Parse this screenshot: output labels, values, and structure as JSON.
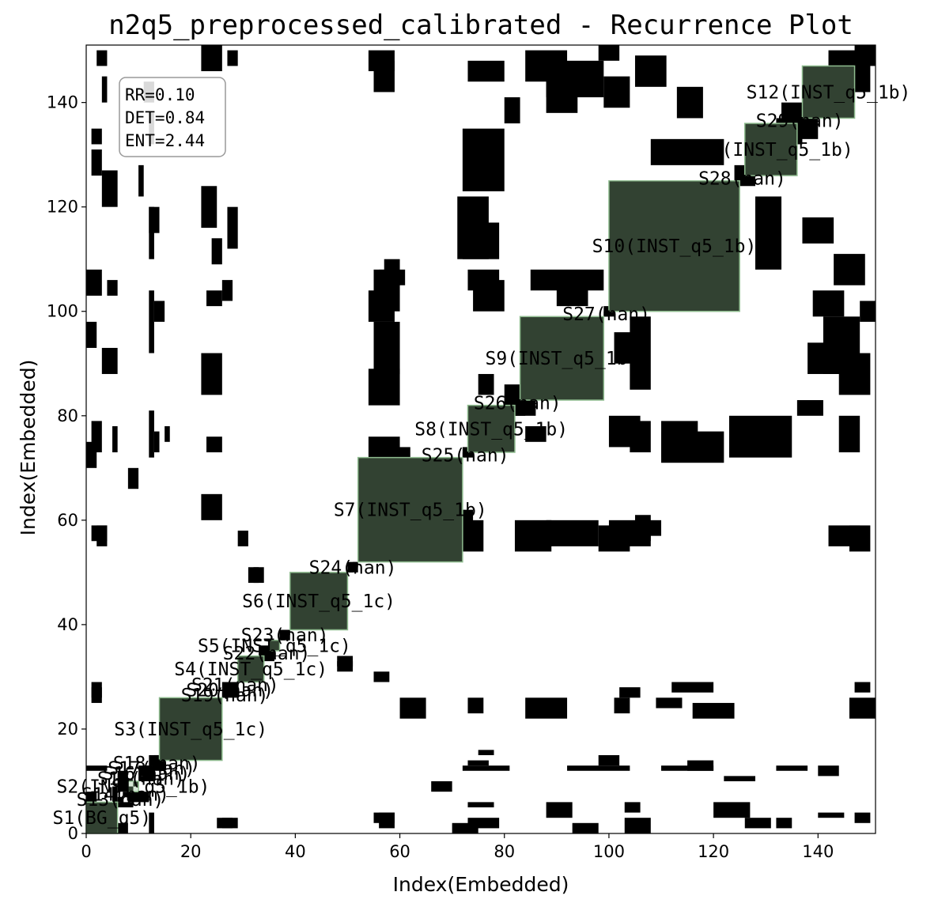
{
  "chart_data": {
    "type": "heatmap",
    "title": "n2q5_preprocessed_calibrated - Recurrence Plot",
    "xlabel": "Index(Embedded)",
    "ylabel": "Index(Embedded)",
    "xlim": [
      0,
      151
    ],
    "ylim": [
      0,
      151
    ],
    "xticks": [
      0,
      20,
      40,
      60,
      80,
      100,
      120,
      140
    ],
    "yticks": [
      0,
      20,
      40,
      60,
      80,
      100,
      120,
      140
    ],
    "grid": false,
    "colors": {
      "recurrence": "#000000",
      "segment_fill": "#8fbc8f",
      "background": "#ffffff"
    },
    "stats": {
      "rr": "RR=0.10",
      "det": "DET=0.84",
      "ent": "ENT=2.44"
    },
    "segments": [
      {
        "label": "S1(BG_q5)",
        "start": 0,
        "end": 6,
        "highlighted": true
      },
      {
        "label": "S13(nan)",
        "start": 6,
        "end": 7,
        "highlighted": false
      },
      {
        "label": "S14(nan)",
        "start": 7,
        "end": 8,
        "highlighted": false
      },
      {
        "label": "S2(INST_q5_1b)",
        "start": 8,
        "end": 10,
        "highlighted": true
      },
      {
        "label": "S15(nan)",
        "start": 10,
        "end": 11,
        "highlighted": false
      },
      {
        "label": "S16(nan)",
        "start": 11,
        "end": 12,
        "highlighted": false
      },
      {
        "label": "S17(nan)",
        "start": 12,
        "end": 13,
        "highlighted": false
      },
      {
        "label": "S18(nan)",
        "start": 13,
        "end": 14,
        "highlighted": false
      },
      {
        "label": "S3(INST_q5_1c)",
        "start": 14,
        "end": 26,
        "highlighted": true
      },
      {
        "label": "S19(nan)",
        "start": 26,
        "end": 27,
        "highlighted": false
      },
      {
        "label": "S20(nan)",
        "start": 27,
        "end": 28,
        "highlighted": false
      },
      {
        "label": "S21(nan)",
        "start": 28,
        "end": 29,
        "highlighted": false
      },
      {
        "label": "S4(INST_q5_1c)",
        "start": 29,
        "end": 34,
        "highlighted": true
      },
      {
        "label": "S22(nan)",
        "start": 34,
        "end": 35,
        "highlighted": false
      },
      {
        "label": "S5(INST_q5_1c)",
        "start": 35,
        "end": 37,
        "highlighted": true
      },
      {
        "label": "S23(nan)",
        "start": 37,
        "end": 39,
        "highlighted": false
      },
      {
        "label": "S6(INST_q5_1c)",
        "start": 39,
        "end": 50,
        "highlighted": true
      },
      {
        "label": "S24(nan)",
        "start": 50,
        "end": 52,
        "highlighted": false
      },
      {
        "label": "S7(INST_q5_1b)",
        "start": 52,
        "end": 72,
        "highlighted": true
      },
      {
        "label": "S25(nan)",
        "start": 72,
        "end": 73,
        "highlighted": false
      },
      {
        "label": "S8(INST_q5_1b)",
        "start": 73,
        "end": 82,
        "highlighted": true
      },
      {
        "label": "S26(nan)",
        "start": 82,
        "end": 83,
        "highlighted": false
      },
      {
        "label": "S9(INST_q5_1b)",
        "start": 83,
        "end": 99,
        "highlighted": true
      },
      {
        "label": "S27(nan)",
        "start": 99,
        "end": 100,
        "highlighted": false
      },
      {
        "label": "S10(INST_q5_1b)",
        "start": 100,
        "end": 125,
        "highlighted": true
      },
      {
        "label": "S28(nan)",
        "start": 125,
        "end": 126,
        "highlighted": false
      },
      {
        "label": "S11(INST_q5_1b)",
        "start": 126,
        "end": 136,
        "highlighted": true
      },
      {
        "label": "S29(nan)",
        "start": 136,
        "end": 137,
        "highlighted": false
      },
      {
        "label": "S12(INST_q5_1b)",
        "start": 137,
        "end": 147,
        "highlighted": true
      }
    ],
    "recurrence_blocks": [
      {
        "x": [
          0,
          6
        ],
        "y": [
          0,
          6
        ]
      },
      {
        "x": [
          1,
          3
        ],
        "y": [
          26,
          28
        ]
      },
      {
        "x": [
          1,
          3
        ],
        "y": [
          73,
          79
        ]
      },
      {
        "x": [
          1,
          3
        ],
        "y": [
          132,
          135
        ]
      },
      {
        "x": [
          2,
          4
        ],
        "y": [
          55,
          59
        ]
      },
      {
        "x": [
          2,
          4
        ],
        "y": [
          147,
          150
        ]
      },
      {
        "x": [
          5,
          6
        ],
        "y": [
          6,
          9
        ]
      },
      {
        "x": [
          6,
          8
        ],
        "y": [
          8,
          12
        ]
      },
      {
        "x": [
          5,
          6
        ],
        "y": [
          73,
          78
        ]
      },
      {
        "x": [
          10,
          11
        ],
        "y": [
          122,
          128
        ]
      },
      {
        "x": [
          11,
          13
        ],
        "y": [
          10,
          13
        ]
      },
      {
        "x": [
          13,
          15
        ],
        "y": [
          12,
          15
        ]
      },
      {
        "x": [
          14,
          26
        ],
        "y": [
          14,
          26
        ]
      },
      {
        "x": [
          13,
          14
        ],
        "y": [
          73,
          77
        ]
      },
      {
        "x": [
          15,
          16
        ],
        "y": [
          75,
          78
        ]
      },
      {
        "x": [
          5,
          8
        ],
        "y": [
          0,
          2
        ]
      },
      {
        "x": [
          4,
          6
        ],
        "y": [
          103,
          106
        ]
      },
      {
        "x": [
          8,
          10
        ],
        "y": [
          66,
          70
        ]
      },
      {
        "x": [
          11,
          13
        ],
        "y": [
          140,
          144
        ]
      },
      {
        "x": [
          12,
          14
        ],
        "y": [
          115,
          120
        ]
      },
      {
        "x": [
          13,
          15
        ],
        "y": [
          98,
          102
        ]
      },
      {
        "x": [
          26,
          29
        ],
        "y": [
          26,
          29
        ]
      },
      {
        "x": [
          25,
          29
        ],
        "y": [
          1,
          3
        ]
      },
      {
        "x": [
          26,
          28
        ],
        "y": [
          102,
          106
        ]
      },
      {
        "x": [
          27,
          29
        ],
        "y": [
          112,
          120
        ]
      },
      {
        "x": [
          27,
          29
        ],
        "y": [
          147,
          150
        ]
      },
      {
        "x": [
          29,
          31
        ],
        "y": [
          55,
          58
        ]
      },
      {
        "x": [
          29,
          34
        ],
        "y": [
          29,
          34
        ]
      },
      {
        "x": [
          33,
          35
        ],
        "y": [
          34,
          36
        ]
      },
      {
        "x": [
          31,
          33
        ],
        "y": [
          48,
          51
        ]
      },
      {
        "x": [
          35,
          37
        ],
        "y": [
          35,
          37
        ]
      },
      {
        "x": [
          37,
          39
        ],
        "y": [
          37,
          39
        ]
      },
      {
        "x": [
          39,
          50
        ],
        "y": [
          39,
          50
        ]
      },
      {
        "x": [
          39,
          41
        ],
        "y": [
          41,
          46
        ]
      },
      {
        "x": [
          48,
          51
        ],
        "y": [
          32,
          34
        ]
      },
      {
        "x": [
          50,
          52
        ],
        "y": [
          50,
          52
        ]
      },
      {
        "x": [
          52,
          72
        ],
        "y": [
          52,
          72
        ]
      },
      {
        "x": [
          54,
          60
        ],
        "y": [
          70,
          76
        ]
      },
      {
        "x": [
          54,
          59
        ],
        "y": [
          146,
          150
        ]
      },
      {
        "x": [
          55,
          60
        ],
        "y": [
          88,
          98
        ]
      },
      {
        "x": [
          55,
          60
        ],
        "y": [
          100,
          108
        ]
      },
      {
        "x": [
          58,
          61
        ],
        "y": [
          105,
          108
        ]
      },
      {
        "x": [
          60,
          65
        ],
        "y": [
          22,
          26
        ]
      },
      {
        "x": [
          56,
          59
        ],
        "y": [
          1,
          4
        ]
      },
      {
        "x": [
          57,
          60
        ],
        "y": [
          107,
          110
        ]
      },
      {
        "x": [
          72,
          74
        ],
        "y": [
          72,
          74
        ]
      },
      {
        "x": [
          73,
          82
        ],
        "y": [
          73,
          82
        ]
      },
      {
        "x": [
          72,
          80
        ],
        "y": [
          123,
          135
        ]
      },
      {
        "x": [
          71,
          77
        ],
        "y": [
          110,
          122
        ]
      },
      {
        "x": [
          74,
          80
        ],
        "y": [
          100,
          106
        ]
      },
      {
        "x": [
          70,
          75
        ],
        "y": [
          0,
          2
        ]
      },
      {
        "x": [
          69,
          74
        ],
        "y": [
          56,
          62
        ]
      },
      {
        "x": [
          73,
          76
        ],
        "y": [
          23,
          26
        ]
      },
      {
        "x": [
          80,
          84
        ],
        "y": [
          80,
          86
        ]
      },
      {
        "x": [
          82,
          83
        ],
        "y": [
          82,
          83
        ]
      },
      {
        "x": [
          83,
          99
        ],
        "y": [
          83,
          99
        ]
      },
      {
        "x": [
          84,
          92
        ],
        "y": [
          144,
          150
        ]
      },
      {
        "x": [
          88,
          94
        ],
        "y": [
          138,
          145
        ]
      },
      {
        "x": [
          85,
          99
        ],
        "y": [
          104,
          108
        ]
      },
      {
        "x": [
          82,
          89
        ],
        "y": [
          54,
          60
        ]
      },
      {
        "x": [
          84,
          88
        ],
        "y": [
          75,
          78
        ]
      },
      {
        "x": [
          84,
          92
        ],
        "y": [
          22,
          26
        ]
      },
      {
        "x": [
          88,
          93
        ],
        "y": [
          3,
          6
        ]
      },
      {
        "x": [
          93,
          98
        ],
        "y": [
          0,
          2
        ]
      },
      {
        "x": [
          99,
          101
        ],
        "y": [
          99,
          101
        ]
      },
      {
        "x": [
          100,
          125
        ],
        "y": [
          100,
          125
        ]
      },
      {
        "x": [
          99,
          104
        ],
        "y": [
          139,
          145
        ]
      },
      {
        "x": [
          101,
          106
        ],
        "y": [
          90,
          96
        ]
      },
      {
        "x": [
          101,
          104
        ],
        "y": [
          23,
          26
        ]
      },
      {
        "x": [
          98,
          104
        ],
        "y": [
          54,
          59
        ]
      },
      {
        "x": [
          103,
          108
        ],
        "y": [
          0,
          3
        ]
      },
      {
        "x": [
          104,
          108
        ],
        "y": [
          73,
          79
        ]
      },
      {
        "x": [
          105,
          108
        ],
        "y": [
          56,
          60
        ]
      },
      {
        "x": [
          109,
          114
        ],
        "y": [
          24,
          26
        ]
      },
      {
        "x": [
          113,
          118
        ],
        "y": [
          137,
          143
        ]
      },
      {
        "x": [
          110,
          117
        ],
        "y": [
          72,
          79
        ]
      },
      {
        "x": [
          116,
          124
        ],
        "y": [
          22,
          25
        ]
      },
      {
        "x": [
          120,
          127
        ],
        "y": [
          3,
          6
        ]
      },
      {
        "x": [
          125,
          126
        ],
        "y": [
          125,
          126
        ]
      },
      {
        "x": [
          126,
          136
        ],
        "y": [
          126,
          136
        ]
      },
      {
        "x": [
          124,
          128
        ],
        "y": [
          124,
          128
        ]
      },
      {
        "x": [
          128,
          133
        ],
        "y": [
          108,
          122
        ]
      },
      {
        "x": [
          133,
          137
        ],
        "y": [
          132,
          140
        ]
      },
      {
        "x": [
          126,
          131
        ],
        "y": [
          1,
          3
        ]
      },
      {
        "x": [
          126,
          132
        ],
        "y": [
          73,
          79
        ]
      },
      {
        "x": [
          136,
          137
        ],
        "y": [
          136,
          137
        ]
      },
      {
        "x": [
          137,
          147
        ],
        "y": [
          137,
          147
        ]
      },
      {
        "x": [
          142,
          149
        ],
        "y": [
          142,
          150
        ]
      },
      {
        "x": [
          141,
          148
        ],
        "y": [
          88,
          99
        ]
      },
      {
        "x": [
          144,
          148
        ],
        "y": [
          73,
          80
        ]
      },
      {
        "x": [
          142,
          148
        ],
        "y": [
          55,
          59
        ]
      },
      {
        "x": [
          143,
          149
        ],
        "y": [
          105,
          111
        ]
      },
      {
        "x": [
          146,
          151
        ],
        "y": [
          22,
          26
        ]
      },
      {
        "x": [
          140,
          145
        ],
        "y": [
          3,
          4
        ]
      },
      {
        "x": [
          138,
          141
        ],
        "y": [
          138,
          141
        ]
      },
      {
        "x": [
          148,
          151
        ],
        "y": [
          98,
          102
        ]
      },
      {
        "x": [
          147,
          151
        ],
        "y": [
          147,
          151
        ]
      },
      {
        "x": [
          136,
          141
        ],
        "y": [
          80,
          83
        ]
      },
      {
        "x": [
          132,
          138
        ],
        "y": [
          12,
          13
        ]
      },
      {
        "x": [
          110,
          120
        ],
        "y": [
          12,
          13
        ]
      },
      {
        "x": [
          92,
          104
        ],
        "y": [
          12,
          13
        ]
      },
      {
        "x": [
          72,
          81
        ],
        "y": [
          12,
          13
        ]
      },
      {
        "x": [
          0,
          4
        ],
        "y": [
          12,
          13
        ]
      }
    ]
  }
}
